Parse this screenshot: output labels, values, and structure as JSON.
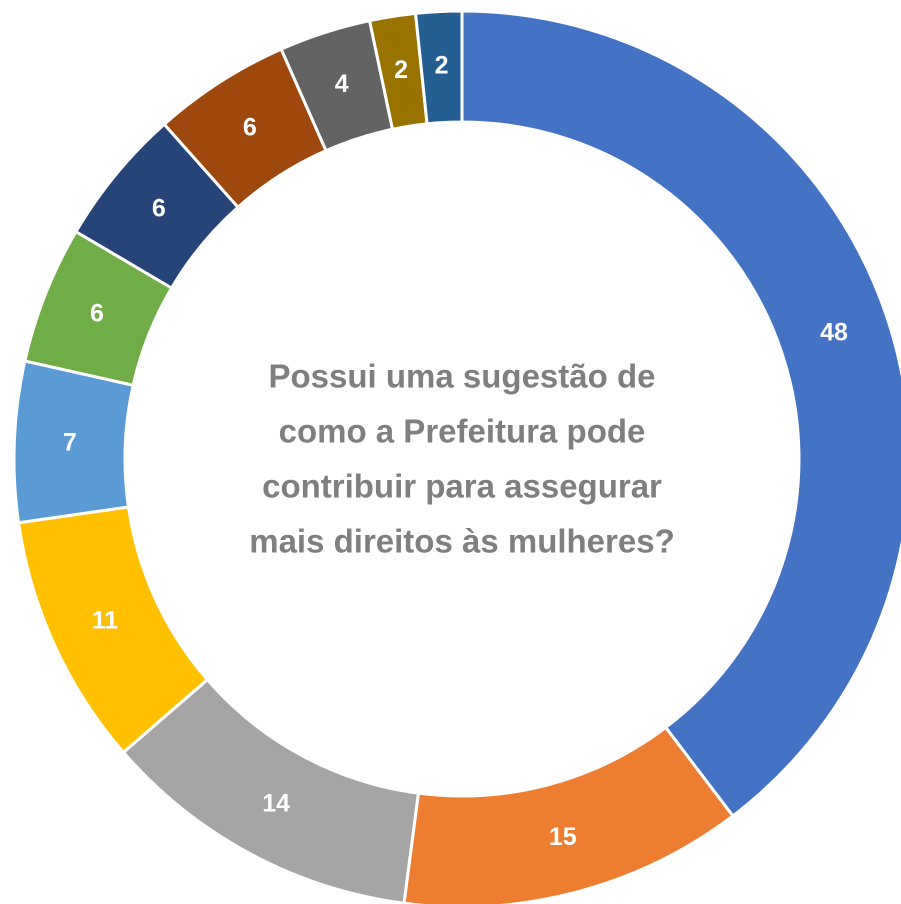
{
  "chart_data": {
    "type": "donut",
    "title": [
      "Possui uma sugestão de",
      "como a Prefeitura pode",
      "contribuir para assegurar",
      "mais direitos às mulheres?"
    ],
    "values": [
      48,
      15,
      14,
      11,
      7,
      6,
      6,
      6,
      4,
      2,
      2
    ],
    "colors": [
      "#4472c4",
      "#ed7d31",
      "#a5a5a5",
      "#ffc000",
      "#5b9bd5",
      "#70ad47",
      "#264478",
      "#9e480e",
      "#636363",
      "#997300",
      "#255e91"
    ]
  }
}
